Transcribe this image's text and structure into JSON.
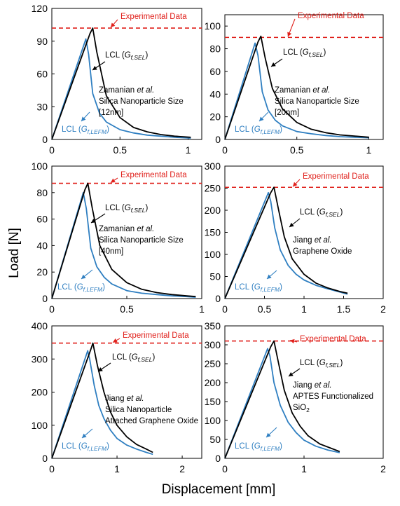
{
  "figure": {
    "xlabel": "Displacement [mm]",
    "ylabel": "Load [N]",
    "colors": {
      "sel": "#000000",
      "lefm": "#2f7fc1",
      "experimental": "#e0201b"
    },
    "label_exp": "Experimental Data",
    "label_sel_prefix": "LCL (",
    "label_sel_sym": "G",
    "label_sel_sub": "f,SEL",
    "label_lefm_prefix": "LCL (",
    "label_lefm_sym": "G",
    "label_lefm_sub": "f,LEFM",
    "label_suffix": ")"
  },
  "chart_data": [
    {
      "type": "line",
      "panel": "top-left",
      "annotation": [
        "Zamanian et al.",
        "Silica Nanoparticle Size",
        "[12nm]"
      ],
      "xlim": [
        0,
        1.1
      ],
      "ylim": [
        0,
        120
      ],
      "xticks": [
        0,
        0.5,
        1
      ],
      "xtick_labels": [
        "0",
        "0.5",
        "1"
      ],
      "yticks": [
        0,
        30,
        60,
        90,
        120
      ],
      "ytick_labels": [
        "0",
        "30",
        "60",
        "90",
        "120"
      ],
      "experimental": 102,
      "series": [
        {
          "key": "sel",
          "x": [
            0,
            0.28,
            0.3,
            0.33,
            0.4,
            0.5,
            0.6,
            0.7,
            0.8,
            0.9,
            1.02
          ],
          "y": [
            0,
            97,
            102,
            80,
            40,
            20,
            11,
            7,
            4.5,
            3,
            2
          ]
        },
        {
          "key": "lefm",
          "x": [
            0,
            0.25,
            0.27,
            0.3,
            0.35,
            0.4,
            0.5,
            0.6,
            0.7,
            0.8,
            0.9,
            1.02
          ],
          "y": [
            0,
            92,
            78,
            42,
            24,
            16,
            9,
            6,
            4,
            3,
            2,
            1.2
          ]
        }
      ]
    },
    {
      "type": "line",
      "panel": "top-right",
      "annotation": [
        "Zamanian et al.",
        "Silica Nanoparticle Size",
        "[20nm]"
      ],
      "xlim": [
        0,
        1.1
      ],
      "ylim": [
        0,
        110
      ],
      "xticks": [
        0,
        0.5,
        1
      ],
      "xtick_labels": [
        "0",
        "0.5",
        "1"
      ],
      "yticks": [
        0,
        20,
        40,
        60,
        80,
        100
      ],
      "ytick_labels": [
        "0",
        "20",
        "40",
        "60",
        "80",
        "100"
      ],
      "experimental": 90,
      "series": [
        {
          "key": "sel",
          "x": [
            0,
            0.23,
            0.25,
            0.28,
            0.33,
            0.4,
            0.5,
            0.6,
            0.7,
            0.8,
            0.9,
            1.0
          ],
          "y": [
            0,
            86,
            91,
            72,
            45,
            27,
            15,
            9,
            6,
            4,
            3,
            2
          ]
        },
        {
          "key": "lefm",
          "x": [
            0,
            0.21,
            0.23,
            0.26,
            0.3,
            0.35,
            0.4,
            0.5,
            0.6,
            0.7,
            0.8,
            0.9,
            1.0
          ],
          "y": [
            0,
            85,
            74,
            42,
            26,
            17,
            12,
            7,
            5,
            3.5,
            2.5,
            2,
            1.5
          ]
        }
      ]
    },
    {
      "type": "line",
      "panel": "middle-left",
      "annotation": [
        "Zamanian et al.",
        "Silica Nanoparticle Size",
        "[40nm]"
      ],
      "xlim": [
        0,
        1
      ],
      "ylim": [
        0,
        100
      ],
      "xticks": [
        0,
        0.5,
        1
      ],
      "xtick_labels": [
        "0",
        "0.5",
        "1"
      ],
      "yticks": [
        0,
        20,
        40,
        60,
        80,
        100
      ],
      "ytick_labels": [
        "0",
        "20",
        "40",
        "60",
        "80",
        "100"
      ],
      "experimental": 87,
      "series": [
        {
          "key": "sel",
          "x": [
            0,
            0.22,
            0.24,
            0.27,
            0.32,
            0.4,
            0.5,
            0.6,
            0.7,
            0.8,
            0.9,
            0.96
          ],
          "y": [
            0,
            82,
            87,
            68,
            40,
            22,
            12,
            7,
            4.5,
            3,
            2,
            1.5
          ]
        },
        {
          "key": "lefm",
          "x": [
            0,
            0.21,
            0.23,
            0.26,
            0.3,
            0.35,
            0.4,
            0.5,
            0.6,
            0.7,
            0.8,
            0.9,
            0.96
          ],
          "y": [
            0,
            80,
            68,
            38,
            24,
            16,
            11,
            6,
            4,
            3,
            2,
            1.5,
            1
          ]
        }
      ]
    },
    {
      "type": "line",
      "panel": "middle-right",
      "annotation": [
        "Jiang et al.",
        "Graphene Oxide"
      ],
      "xlim": [
        0,
        2
      ],
      "ylim": [
        0,
        300
      ],
      "xticks": [
        0,
        0.5,
        1,
        1.5,
        2
      ],
      "xtick_labels": [
        "0",
        "0.5",
        "1",
        "1.5",
        "2"
      ],
      "yticks": [
        0,
        50,
        100,
        150,
        200,
        250,
        300
      ],
      "ytick_labels": [
        "0",
        "50",
        "100",
        "150",
        "200",
        "250",
        "300"
      ],
      "experimental": 252,
      "series": [
        {
          "key": "sel",
          "x": [
            0,
            0.58,
            0.62,
            0.68,
            0.75,
            0.85,
            1.0,
            1.15,
            1.3,
            1.45,
            1.55
          ],
          "y": [
            0,
            240,
            252,
            200,
            140,
            90,
            55,
            35,
            24,
            16,
            12
          ]
        },
        {
          "key": "lefm",
          "x": [
            0,
            0.55,
            0.58,
            0.63,
            0.7,
            0.8,
            0.9,
            1.0,
            1.15,
            1.3,
            1.45,
            1.55
          ],
          "y": [
            0,
            240,
            220,
            160,
            110,
            75,
            55,
            42,
            30,
            22,
            15,
            10
          ]
        }
      ]
    },
    {
      "type": "line",
      "panel": "bottom-left",
      "annotation": [
        "Jiang et al.",
        "Silica Nanoparticle",
        "Attached Graphene Oxide"
      ],
      "xlim": [
        0,
        2.3
      ],
      "ylim": [
        0,
        400
      ],
      "xticks": [
        0,
        1,
        2
      ],
      "xtick_labels": [
        "0",
        "1",
        "2"
      ],
      "yticks": [
        0,
        100,
        200,
        300,
        400
      ],
      "ytick_labels": [
        "0",
        "100",
        "200",
        "300",
        "400"
      ],
      "experimental": 348,
      "series": [
        {
          "key": "sel",
          "x": [
            0,
            0.6,
            0.63,
            0.7,
            0.8,
            0.9,
            1.0,
            1.15,
            1.3,
            1.45,
            1.55
          ],
          "y": [
            0,
            330,
            348,
            280,
            200,
            140,
            100,
            65,
            42,
            28,
            18
          ]
        },
        {
          "key": "lefm",
          "x": [
            0,
            0.55,
            0.58,
            0.65,
            0.72,
            0.8,
            0.9,
            1.0,
            1.15,
            1.3,
            1.45,
            1.55
          ],
          "y": [
            0,
            325,
            300,
            220,
            160,
            120,
            85,
            60,
            40,
            28,
            18,
            12
          ]
        }
      ]
    },
    {
      "type": "line",
      "panel": "bottom-right",
      "annotation": [
        "Jiang et al.",
        "APTES Functionalized",
        "SiO2"
      ],
      "xlim": [
        0,
        2
      ],
      "ylim": [
        0,
        350
      ],
      "xticks": [
        0,
        1,
        2
      ],
      "xtick_labels": [
        "0",
        "1",
        "2"
      ],
      "yticks": [
        0,
        50,
        100,
        150,
        200,
        250,
        300,
        350
      ],
      "ytick_labels": [
        "0",
        "50",
        "100",
        "150",
        "200",
        "250",
        "300",
        "350"
      ],
      "experimental": 310,
      "series": [
        {
          "key": "sel",
          "x": [
            0,
            0.58,
            0.62,
            0.68,
            0.75,
            0.85,
            0.95,
            1.05,
            1.2,
            1.35,
            1.45
          ],
          "y": [
            0,
            295,
            310,
            250,
            180,
            120,
            85,
            60,
            38,
            26,
            18
          ]
        },
        {
          "key": "lefm",
          "x": [
            0,
            0.54,
            0.57,
            0.62,
            0.7,
            0.8,
            0.9,
            1.0,
            1.15,
            1.3,
            1.45
          ],
          "y": [
            0,
            290,
            270,
            200,
            140,
            95,
            68,
            48,
            32,
            22,
            15
          ]
        }
      ]
    }
  ]
}
